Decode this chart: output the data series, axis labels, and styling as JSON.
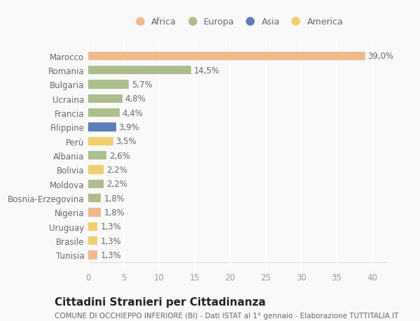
{
  "countries": [
    "Marocco",
    "Romania",
    "Bulgaria",
    "Ucraina",
    "Francia",
    "Filippine",
    "Perù",
    "Albania",
    "Bolivia",
    "Moldova",
    "Bosnia-Erzegovina",
    "Nigeria",
    "Uruguay",
    "Brasile",
    "Tunisia"
  ],
  "values": [
    39.0,
    14.5,
    5.7,
    4.8,
    4.4,
    3.9,
    3.5,
    2.6,
    2.2,
    2.2,
    1.8,
    1.8,
    1.3,
    1.3,
    1.3
  ],
  "labels": [
    "39,0%",
    "14,5%",
    "5,7%",
    "4,8%",
    "4,4%",
    "3,9%",
    "3,5%",
    "2,6%",
    "2,2%",
    "2,2%",
    "1,8%",
    "1,8%",
    "1,3%",
    "1,3%",
    "1,3%"
  ],
  "continents": [
    "Africa",
    "Europa",
    "Europa",
    "Europa",
    "Europa",
    "Asia",
    "America",
    "Europa",
    "America",
    "Europa",
    "Europa",
    "Africa",
    "America",
    "America",
    "Africa"
  ],
  "colors": {
    "Africa": "#F0B98A",
    "Europa": "#ABBE8C",
    "Asia": "#5B7DB8",
    "America": "#F2CE6A"
  },
  "xlim": [
    0,
    42
  ],
  "xticks": [
    0,
    5,
    10,
    15,
    20,
    25,
    30,
    35,
    40
  ],
  "title": "Cittadini Stranieri per Cittadinanza",
  "subtitle": "COMUNE DI OCCHIEPPO INFERIORE (BI) - Dati ISTAT al 1° gennaio - Elaborazione TUTTITALIA.IT",
  "background_color": "#f9f9f9",
  "bar_height": 0.6,
  "label_fontsize": 8.5,
  "tick_fontsize": 8.5,
  "title_fontsize": 11,
  "subtitle_fontsize": 7.5
}
